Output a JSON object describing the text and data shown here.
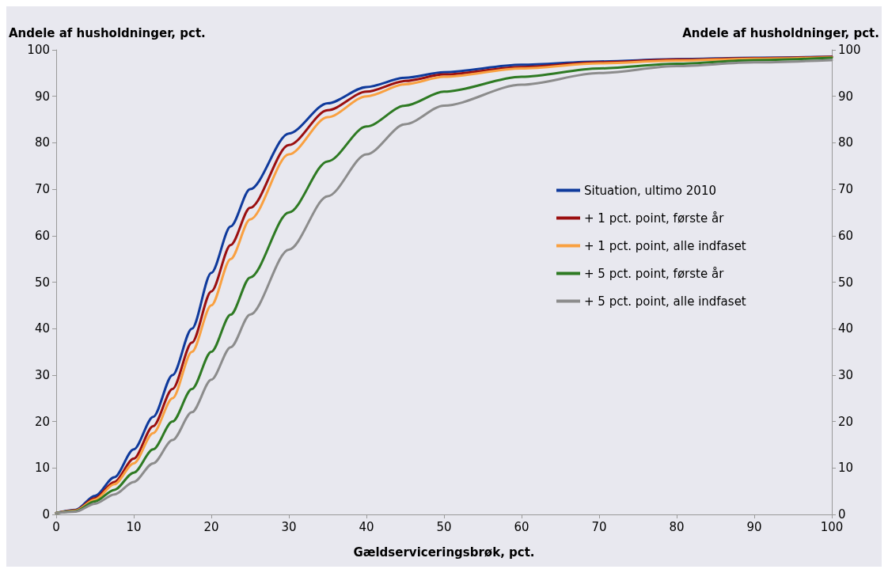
{
  "chart_data": {
    "type": "line",
    "xlabel": "Gældserviceringsbrøk, pct.",
    "ylabel": "Andele af husholdninger, pct.",
    "y2label": "Andele af husholdninger, pct.",
    "x": [
      0,
      2.5,
      5,
      7.5,
      10,
      12.5,
      15,
      17.5,
      20,
      22.5,
      25,
      30,
      35,
      40,
      45,
      50,
      60,
      70,
      80,
      90,
      100
    ],
    "series": [
      {
        "name": "Situation, ultimo 2010",
        "color": "#0f3a9c",
        "values": [
          0.3,
          1,
          4,
          8,
          14,
          21,
          30,
          40,
          52,
          62,
          70,
          82,
          88.5,
          92,
          94,
          95.2,
          96.8,
          97.5,
          98,
          98.3,
          98.5
        ]
      },
      {
        "name": "+ 1 pct. point, første år",
        "color": "#9b0f0f",
        "values": [
          0.3,
          0.9,
          3.5,
          7,
          12,
          19,
          27,
          37,
          48,
          58,
          66,
          79.5,
          87,
          91,
          93.3,
          94.7,
          96.3,
          97.3,
          97.9,
          98.2,
          98.5
        ]
      },
      {
        "name": "+ 1 pct. point, alle indfaset",
        "color": "#f9a040",
        "values": [
          0.3,
          0.8,
          3.2,
          6.5,
          11,
          17.5,
          25,
          35,
          45,
          55,
          63.5,
          77.5,
          85.5,
          90,
          92.6,
          94.2,
          96,
          97.1,
          97.7,
          98.1,
          98.4
        ]
      },
      {
        "name": "+ 5 pct. point, første år",
        "color": "#2e7a23",
        "values": [
          0.3,
          0.7,
          2.8,
          5.3,
          9,
          14,
          20,
          27,
          35,
          43,
          51,
          65,
          76,
          83.5,
          88,
          91,
          94.2,
          96,
          97,
          97.8,
          98.3
        ]
      },
      {
        "name": "+ 5 pct. point, alle indfaset",
        "color": "#8c8c8c",
        "values": [
          0.3,
          0.6,
          2.3,
          4.3,
          7,
          11,
          16,
          22,
          29,
          36,
          43,
          57,
          68.5,
          77.5,
          84,
          88,
          92.5,
          95,
          96.5,
          97.3,
          97.8
        ]
      }
    ],
    "xlim": [
      0,
      100
    ],
    "xticks": [
      0,
      10,
      20,
      30,
      40,
      50,
      60,
      70,
      80,
      90,
      100
    ],
    "ylim": [
      0,
      100
    ],
    "yticks": [
      0,
      10,
      20,
      30,
      40,
      50,
      60,
      70,
      80,
      90,
      100
    ],
    "y2lim": [
      0,
      100
    ],
    "y2ticks": [
      0,
      10,
      20,
      30,
      40,
      50,
      60,
      70,
      80,
      90,
      100
    ],
    "grid": false,
    "legend": "right",
    "marker": "none",
    "line_style": "solid"
  }
}
